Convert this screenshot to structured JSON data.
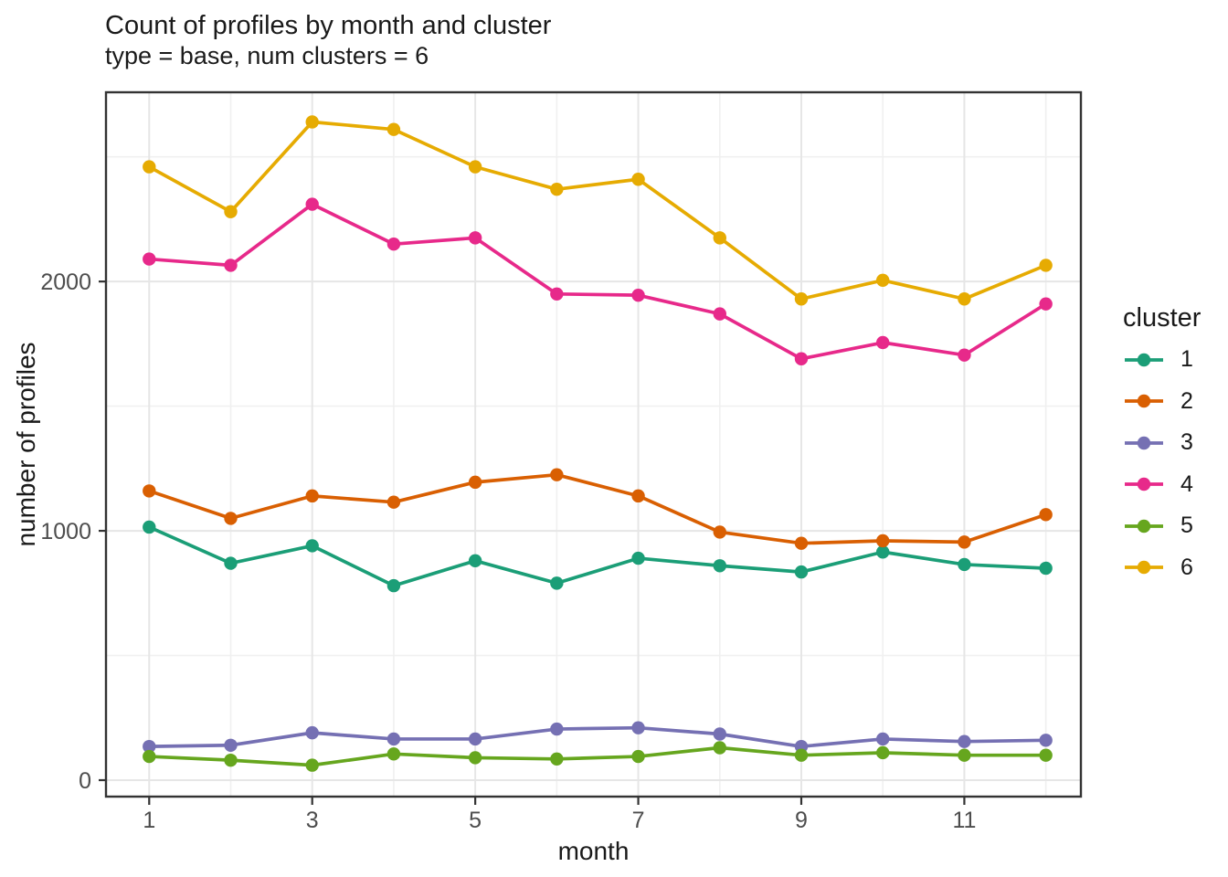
{
  "title": "Count of profiles by month and cluster",
  "subtitle": "type = base, num clusters = 6",
  "chart_data": {
    "type": "line",
    "x": [
      1,
      2,
      3,
      4,
      5,
      6,
      7,
      8,
      9,
      10,
      11,
      12
    ],
    "xlabel": "month",
    "ylabel": "number of profiles",
    "legend_title": "cluster",
    "legend_position": "right",
    "grid": true,
    "x_ticks": [
      1,
      3,
      5,
      7,
      9,
      11
    ],
    "x_minor_ticks": [
      2,
      4,
      6,
      8,
      10,
      12
    ],
    "y_ticks": [
      0,
      1000,
      2000
    ],
    "y_minor_ticks": [
      500,
      1500,
      2500
    ],
    "xlim": [
      0.47,
      12.43
    ],
    "ylim": [
      -66,
      2759
    ],
    "series": [
      {
        "name": "1",
        "color": "#1B9E77",
        "values": [
          1015,
          870,
          940,
          780,
          880,
          790,
          890,
          860,
          835,
          915,
          865,
          850
        ]
      },
      {
        "name": "2",
        "color": "#D95F02",
        "values": [
          1160,
          1050,
          1140,
          1115,
          1195,
          1225,
          1140,
          995,
          950,
          960,
          955,
          1065
        ]
      },
      {
        "name": "3",
        "color": "#7570B3",
        "values": [
          135,
          140,
          190,
          165,
          165,
          205,
          210,
          185,
          135,
          165,
          155,
          160
        ]
      },
      {
        "name": "4",
        "color": "#E7298A",
        "values": [
          2090,
          2065,
          2310,
          2150,
          2175,
          1950,
          1945,
          1870,
          1690,
          1755,
          1705,
          1910
        ]
      },
      {
        "name": "5",
        "color": "#66A61E",
        "values": [
          95,
          80,
          60,
          105,
          90,
          85,
          95,
          130,
          100,
          110,
          100,
          100
        ]
      },
      {
        "name": "6",
        "color": "#E6AB02",
        "values": [
          2460,
          2280,
          2640,
          2610,
          2460,
          2370,
          2410,
          2175,
          1930,
          2005,
          1930,
          2065
        ]
      }
    ]
  },
  "theme": {
    "background": "#FFFFFF",
    "panel_border": "#333333",
    "grid_major": "#E6E6E6",
    "grid_minor": "#F0F0F0",
    "tick_color": "#333333",
    "axis_text_color": "#4D4D4D",
    "title_color": "#1A1A1A"
  }
}
